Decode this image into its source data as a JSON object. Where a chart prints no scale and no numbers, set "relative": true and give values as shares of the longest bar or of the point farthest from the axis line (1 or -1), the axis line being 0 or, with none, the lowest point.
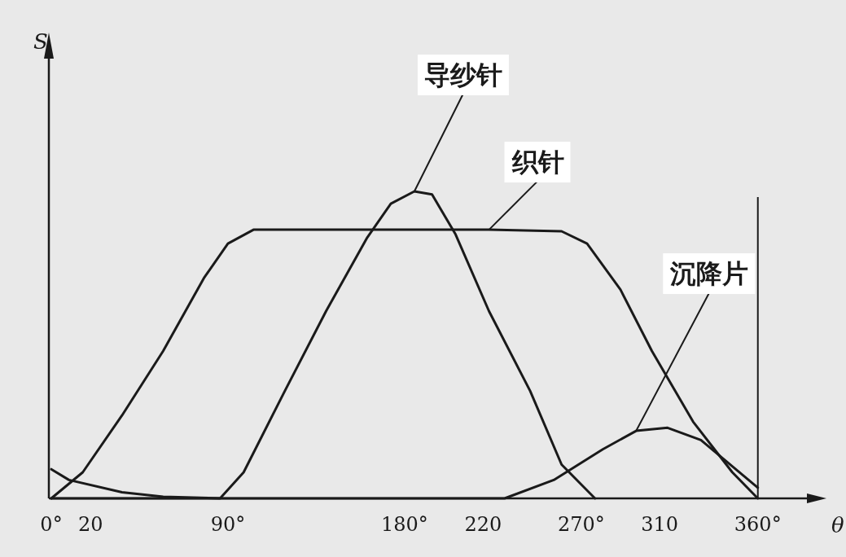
{
  "chart_data": {
    "type": "line",
    "relative": true,
    "xlabel": "θ",
    "annotations": [
      "S"
    ],
    "xlim": [
      0,
      385
    ],
    "xticks": [
      {
        "value": 0,
        "label": "0°"
      },
      20,
      {
        "value": 90,
        "label": "90°"
      },
      {
        "value": 180,
        "label": "180°"
      },
      220,
      {
        "value": 270,
        "label": "270°"
      },
      310,
      {
        "value": 360,
        "label": "360°"
      }
    ],
    "ref_lines": [
      {
        "axis": "x",
        "value": 360,
        "color": "#1a1a1a"
      }
    ],
    "line_style": "solid",
    "series": [
      {
        "name": "导纱针",
        "color": "#1a1a1a",
        "x": [
          0,
          86,
          98,
          119,
          140,
          161,
          173,
          185,
          194,
          206,
          223,
          244,
          260,
          277
        ],
        "values": [
          0,
          0,
          0.085,
          0.35,
          0.61,
          0.85,
          0.96,
          1.0,
          0.99,
          0.86,
          0.61,
          0.35,
          0.11,
          0
        ]
      },
      {
        "name": "织针",
        "color": "#1a1a1a",
        "x": [
          0,
          16,
          36,
          57,
          78,
          90,
          103,
          223,
          260,
          273,
          290,
          306,
          327,
          347,
          360
        ],
        "values": [
          0,
          0.085,
          0.27,
          0.48,
          0.72,
          0.83,
          0.875,
          0.875,
          0.87,
          0.83,
          0.68,
          0.48,
          0.25,
          0.085,
          0
        ]
      },
      {
        "name": "沉降片",
        "color": "#1a1a1a",
        "x": [
          0,
          9,
          36,
          57,
          86,
          231,
          256,
          281,
          298,
          314,
          331,
          360
        ],
        "values": [
          0.095,
          0.06,
          0.02,
          0.005,
          0,
          0,
          0.06,
          0.16,
          0.22,
          0.23,
          0.19,
          0.035
        ]
      }
    ]
  }
}
